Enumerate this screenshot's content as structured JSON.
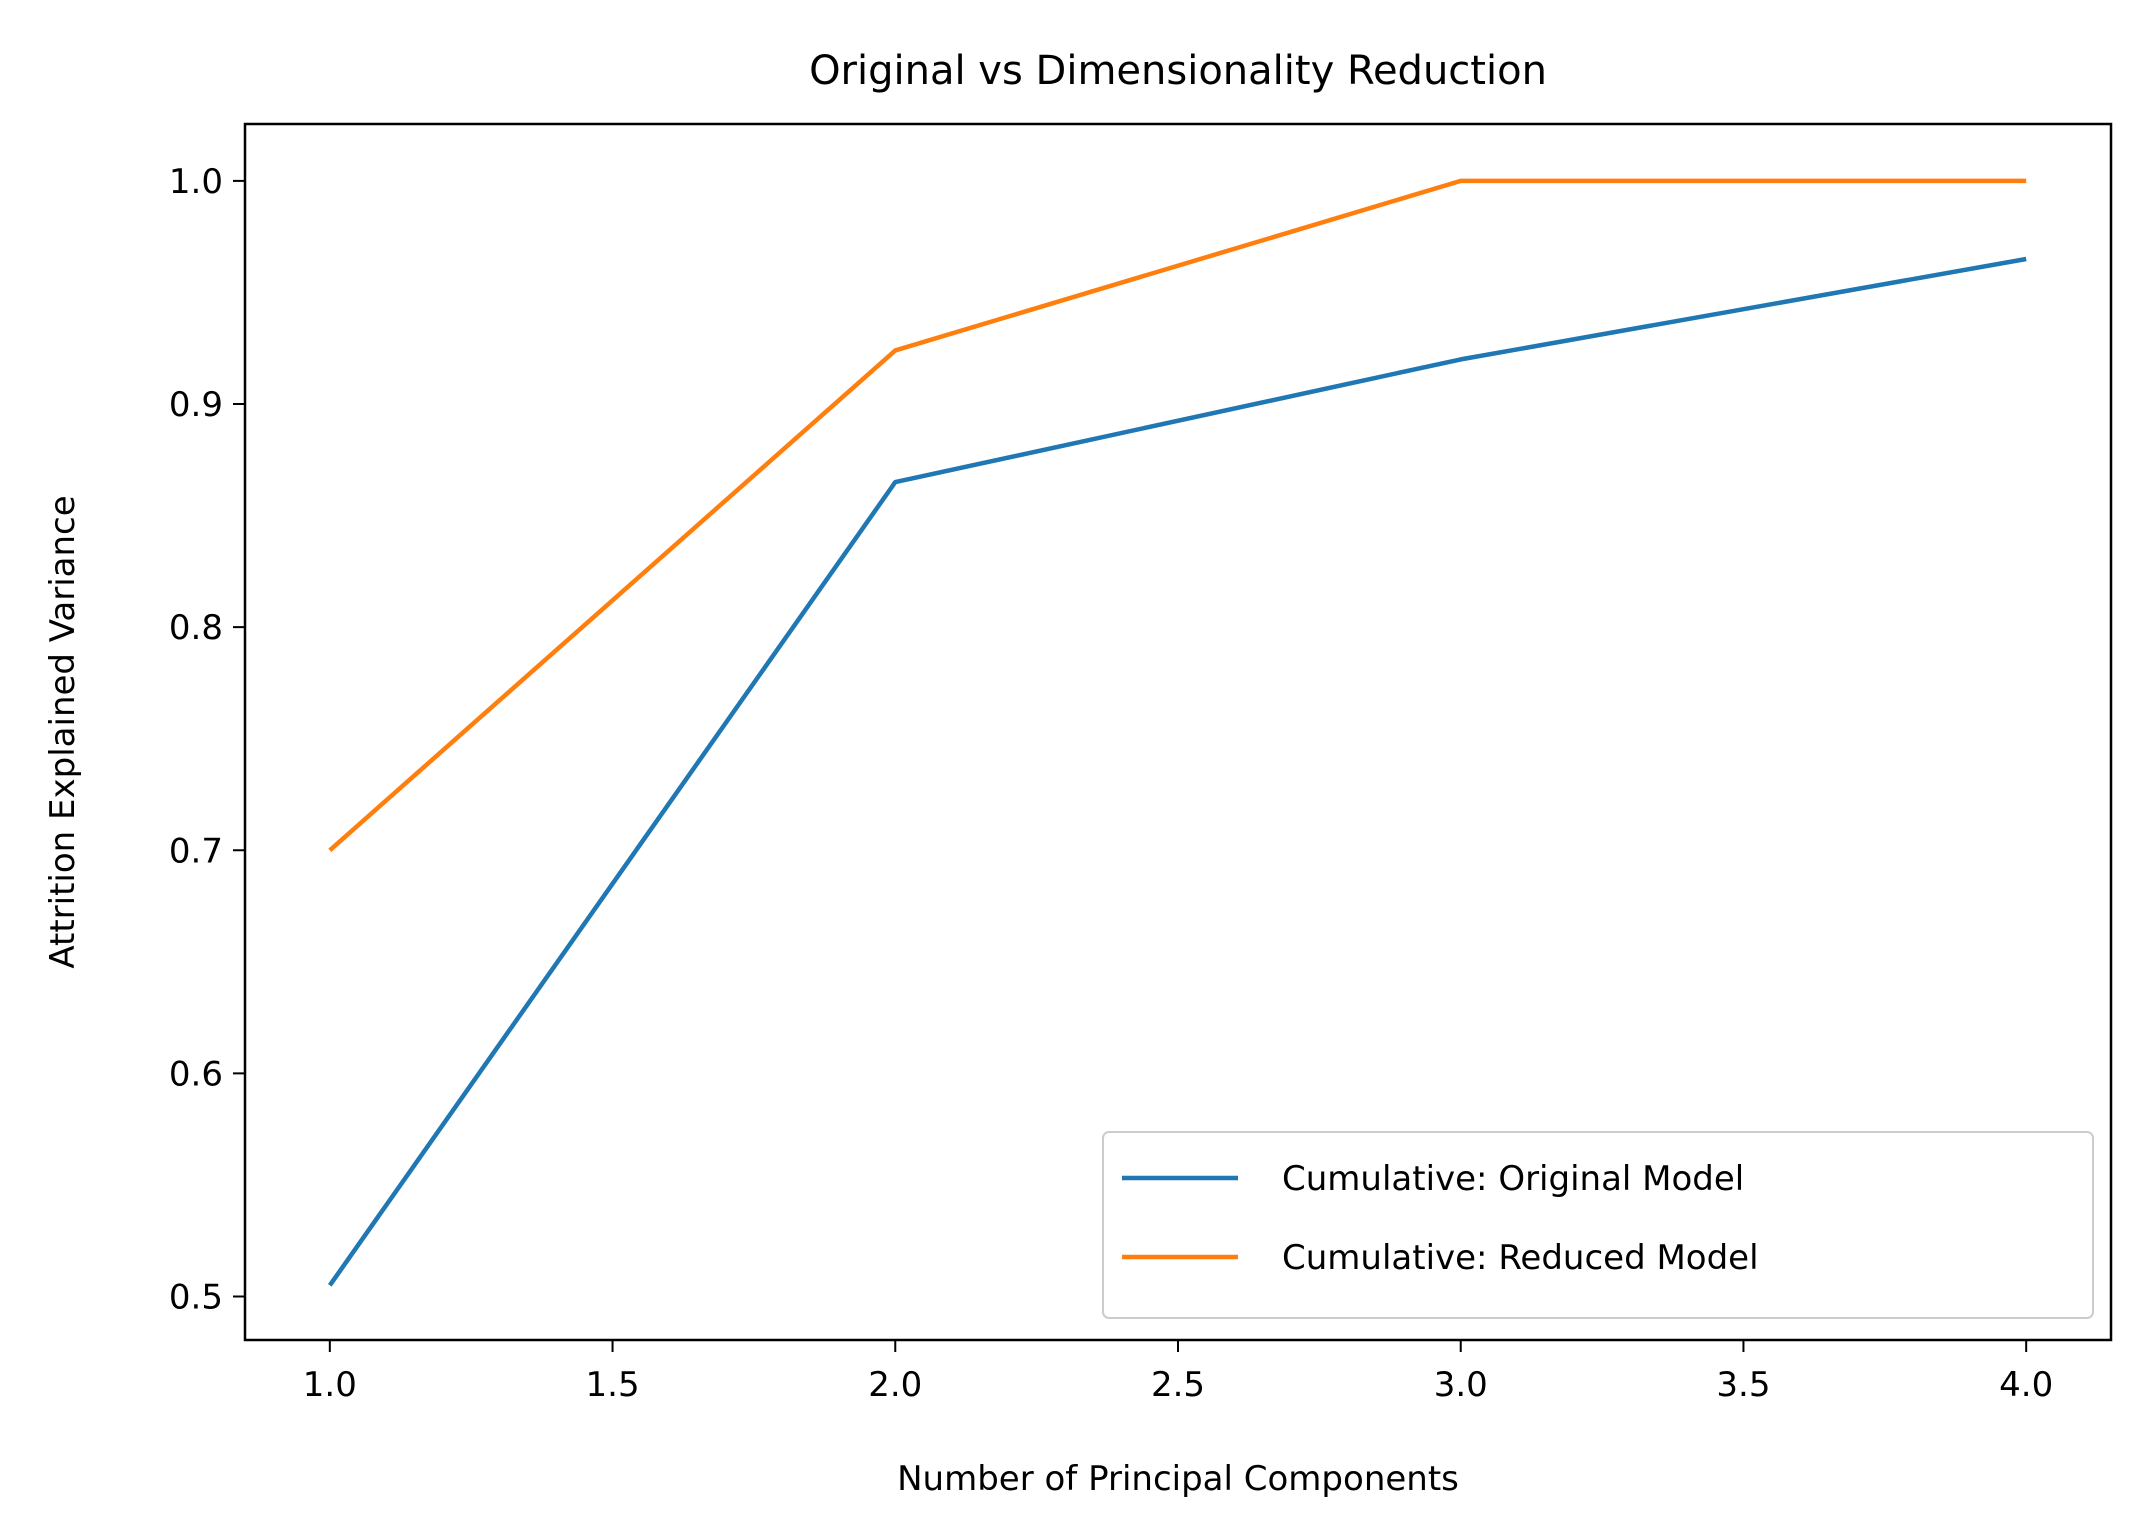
{
  "chart_data": {
    "type": "line",
    "title": "Original vs Dimensionality Reduction",
    "xlabel": "Number of Principal Components",
    "ylabel": "Attrition Explained Variance",
    "xlim": [
      0.85,
      4.15
    ],
    "ylim": [
      0.4805,
      1.0255
    ],
    "xticks": [
      1.0,
      1.5,
      2.0,
      2.5,
      3.0,
      3.5,
      4.0
    ],
    "xtick_labels": [
      "1.0",
      "1.5",
      "2.0",
      "2.5",
      "3.0",
      "3.5",
      "4.0"
    ],
    "yticks": [
      0.5,
      0.6,
      0.7,
      0.8,
      0.9,
      1.0
    ],
    "ytick_labels": [
      "0.5",
      "0.6",
      "0.7",
      "0.8",
      "0.9",
      "1.0"
    ],
    "grid": false,
    "legend_position": "lower-right",
    "series": [
      {
        "name": "Cumulative: Original Model",
        "color": "#1f77b4",
        "x": [
          1,
          2,
          3,
          4
        ],
        "y": [
          0.505,
          0.865,
          0.92,
          0.965
        ]
      },
      {
        "name": "Cumulative: Reduced Model",
        "color": "#ff7f0e",
        "x": [
          1,
          2,
          3,
          4
        ],
        "y": [
          0.7,
          0.924,
          1.0,
          1.0
        ]
      }
    ]
  }
}
